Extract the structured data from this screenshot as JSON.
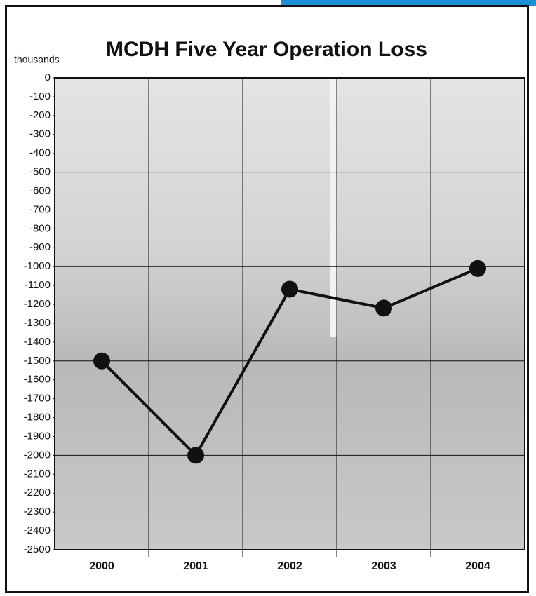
{
  "chart_data": {
    "type": "line",
    "title": "MCDH Five Year Operation Loss",
    "y_label": "thousands",
    "categories": [
      "2000",
      "2001",
      "2002",
      "2003",
      "2004"
    ],
    "values": [
      -1500,
      -2000,
      -1120,
      -1220,
      -1010
    ],
    "color": "#111111",
    "ylim": [
      -2500,
      0
    ],
    "yticks": [
      0,
      -100,
      -200,
      -300,
      -400,
      -500,
      -600,
      -700,
      -800,
      -900,
      -1000,
      -1100,
      -1200,
      -1300,
      -1400,
      -1500,
      -1600,
      -1700,
      -1800,
      -1900,
      -2000,
      -2100,
      -2200,
      -2300,
      -2400,
      -2500
    ],
    "ygrid": [
      -500,
      -1000,
      -1500,
      -2000
    ]
  }
}
